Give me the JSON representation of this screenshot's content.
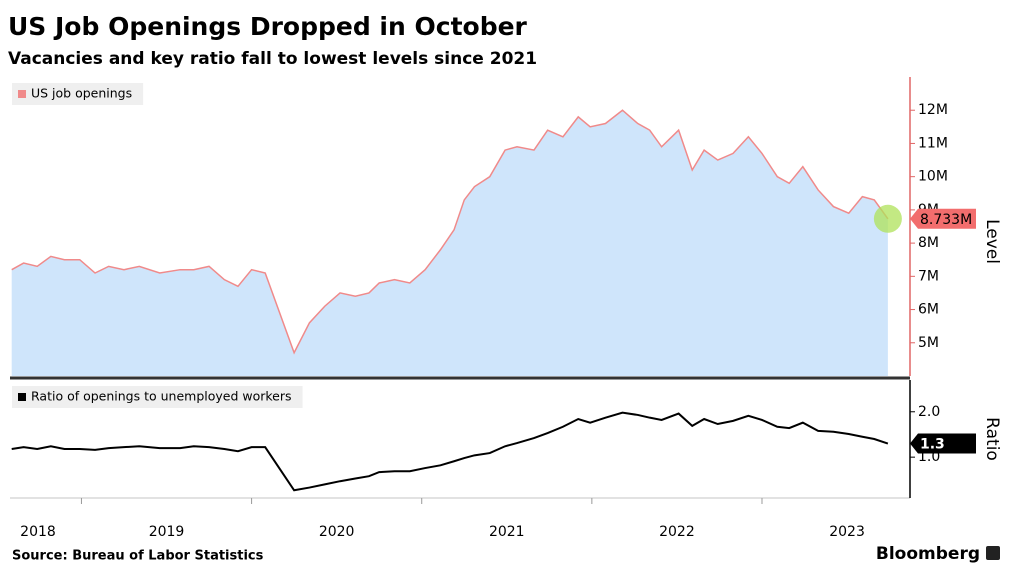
{
  "title": "US Job Openings Dropped in October",
  "subtitle": "Vacancies and key ratio fall to lowest levels since 2021",
  "source": "Source: Bureau of Labor Statistics",
  "brand": "Bloomberg",
  "chart_data": [
    {
      "type": "area",
      "y_label": "Level",
      "axis_color": "#e06666",
      "x": [
        2018.59,
        2018.66,
        2018.74,
        2018.82,
        2018.9,
        2018.99,
        2019.08,
        2019.16,
        2019.25,
        2019.34,
        2019.46,
        2019.58,
        2019.66,
        2019.75,
        2019.84,
        2019.92,
        2020.0,
        2020.08,
        2020.25,
        2020.34,
        2020.43,
        2020.52,
        2020.61,
        2020.69,
        2020.75,
        2020.84,
        2020.93,
        2021.02,
        2021.11,
        2021.19,
        2021.25,
        2021.31,
        2021.4,
        2021.49,
        2021.56,
        2021.66,
        2021.74,
        2021.83,
        2021.92,
        2021.99,
        2022.08,
        2022.18,
        2022.27,
        2022.34,
        2022.41,
        2022.51,
        2022.59,
        2022.66,
        2022.74,
        2022.83,
        2022.92,
        2023.0,
        2023.09,
        2023.16,
        2023.24,
        2023.33,
        2023.42,
        2023.51,
        2023.59,
        2023.66,
        2023.74
      ],
      "xlim": [
        2018.58,
        2023.87
      ],
      "ylim": [
        4,
        13
      ],
      "yticks": [
        {
          "value": 5,
          "label": "5M"
        },
        {
          "value": 6,
          "label": "6M"
        },
        {
          "value": 7,
          "label": "7M"
        },
        {
          "value": 8,
          "label": "8M"
        },
        {
          "value": 9,
          "label": "9M"
        },
        {
          "value": 10,
          "label": "10M"
        },
        {
          "value": 11,
          "label": "11M"
        },
        {
          "value": 12,
          "label": "12M"
        }
      ],
      "grid": false,
      "series": [
        {
          "name": "US job openings",
          "color": "#f08a8a",
          "fill": "#cfe5fb",
          "label_color": "#f26d6d",
          "values": [
            7.2,
            7.4,
            7.3,
            7.6,
            7.5,
            7.5,
            7.1,
            7.3,
            7.2,
            7.3,
            7.1,
            7.2,
            7.2,
            7.3,
            6.9,
            6.7,
            7.2,
            7.1,
            4.7,
            5.6,
            6.1,
            6.5,
            6.4,
            6.5,
            6.8,
            6.9,
            6.8,
            7.2,
            7.8,
            8.4,
            9.3,
            9.7,
            10.0,
            10.8,
            10.9,
            10.8,
            11.4,
            11.2,
            11.8,
            11.5,
            11.6,
            12.0,
            11.6,
            11.4,
            10.9,
            11.4,
            10.2,
            10.8,
            10.5,
            10.7,
            11.2,
            10.7,
            10.0,
            9.8,
            10.3,
            9.6,
            9.1,
            8.9,
            9.4,
            9.3,
            8.733
          ],
          "value_labels": [
            null,
            null,
            null,
            null,
            null,
            null,
            null,
            null,
            null,
            null,
            null,
            null,
            null,
            null,
            null,
            null,
            null,
            null,
            null,
            null,
            null,
            null,
            null,
            null,
            null,
            null,
            null,
            null,
            null,
            null,
            null,
            null,
            null,
            null,
            null,
            null,
            null,
            null,
            null,
            null,
            null,
            null,
            null,
            null,
            null,
            null,
            null,
            null,
            null,
            null,
            null,
            null,
            null,
            null,
            null,
            null,
            null,
            null,
            null,
            null,
            "8.733M"
          ]
        }
      ]
    },
    {
      "type": "line",
      "y_label": "Ratio",
      "axis_color": "#000000",
      "x": [
        2018.59,
        2018.66,
        2018.74,
        2018.82,
        2018.9,
        2018.99,
        2019.08,
        2019.16,
        2019.25,
        2019.34,
        2019.46,
        2019.58,
        2019.66,
        2019.75,
        2019.84,
        2019.92,
        2020.0,
        2020.08,
        2020.25,
        2020.34,
        2020.43,
        2020.52,
        2020.61,
        2020.69,
        2020.75,
        2020.84,
        2020.93,
        2021.02,
        2021.11,
        2021.19,
        2021.25,
        2021.31,
        2021.4,
        2021.49,
        2021.56,
        2021.66,
        2021.74,
        2021.83,
        2021.92,
        2021.99,
        2022.08,
        2022.18,
        2022.27,
        2022.34,
        2022.41,
        2022.51,
        2022.59,
        2022.66,
        2022.74,
        2022.83,
        2022.92,
        2023.0,
        2023.09,
        2023.16,
        2023.24,
        2023.33,
        2023.42,
        2023.51,
        2023.59,
        2023.66,
        2023.74
      ],
      "xlim": [
        2018.58,
        2023.87
      ],
      "xticks": [
        2018,
        2019,
        2020,
        2021,
        2022,
        2023
      ],
      "ylim": [
        0.1,
        2.7
      ],
      "yticks": [
        {
          "value": 1,
          "label": "1.0"
        },
        {
          "value": 2,
          "label": "2.0"
        }
      ],
      "grid": false,
      "series": [
        {
          "name": "Ratio of openings to unemployed workers",
          "color": "#000000",
          "label_color": "#000000",
          "values": [
            1.18,
            1.22,
            1.18,
            1.24,
            1.18,
            1.18,
            1.16,
            1.2,
            1.22,
            1.24,
            1.2,
            1.2,
            1.24,
            1.22,
            1.18,
            1.13,
            1.22,
            1.22,
            0.27,
            0.33,
            0.4,
            0.47,
            0.53,
            0.58,
            0.67,
            0.69,
            0.69,
            0.76,
            0.82,
            0.91,
            0.98,
            1.04,
            1.09,
            1.24,
            1.31,
            1.42,
            1.53,
            1.67,
            1.84,
            1.76,
            1.87,
            1.98,
            1.93,
            1.87,
            1.82,
            1.96,
            1.69,
            1.84,
            1.73,
            1.8,
            1.91,
            1.82,
            1.67,
            1.64,
            1.76,
            1.58,
            1.56,
            1.51,
            1.45,
            1.4,
            1.3
          ]
        }
      ]
    }
  ]
}
